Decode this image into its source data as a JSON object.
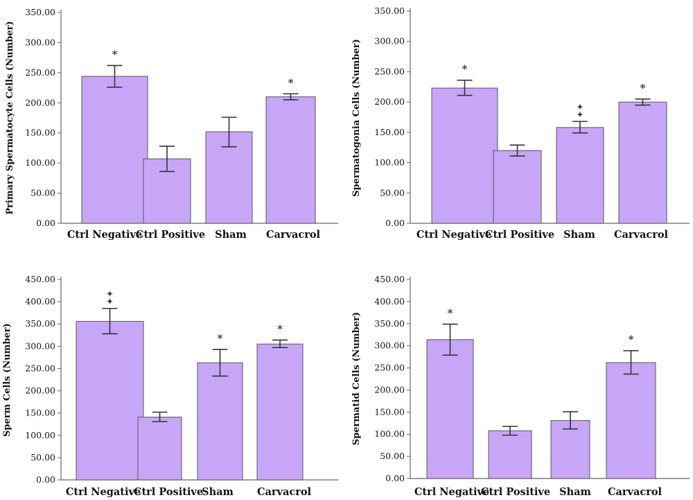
{
  "colors": {
    "bar_fill": "#c7a6f7",
    "bar_stroke": "#555555",
    "axis": "#666666",
    "error": "#333333"
  },
  "chart_data": [
    {
      "type": "bar",
      "title": "",
      "xlabel": "",
      "ylabel": "Primary Spermatocyte Cells (Number)",
      "ylim": [
        0,
        350
      ],
      "yticks": [
        0,
        50,
        100,
        150,
        200,
        250,
        300,
        350
      ],
      "ytick_labels": [
        "0.00",
        "50.00",
        "100.00",
        "150.00",
        "200.00",
        "250.00",
        "300.00",
        "350.00"
      ],
      "categories": [
        "Ctrl Negative",
        "Ctrl Positive",
        "Sham",
        "Carvacrol"
      ],
      "values": [
        244,
        107,
        152,
        210
      ],
      "error_low": [
        226,
        86,
        127,
        205
      ],
      "error_high": [
        262,
        128,
        176,
        215
      ],
      "markers": [
        "*",
        "",
        "",
        "*"
      ],
      "grid": false,
      "legend": "none"
    },
    {
      "type": "bar",
      "title": "",
      "xlabel": "",
      "ylabel": "Spermatogonia Cells (Number)",
      "ylim": [
        0,
        350
      ],
      "yticks": [
        0,
        50,
        100,
        150,
        200,
        250,
        300,
        350
      ],
      "ytick_labels": [
        "0.00",
        "50.00",
        "100.00",
        "150.00",
        "200.00",
        "250.00",
        "300.00",
        "350.00"
      ],
      "categories": [
        "Ctrl Negative",
        "Ctrl Positive",
        "Sham",
        "Carvacrol"
      ],
      "values": [
        223,
        120,
        158,
        200
      ],
      "error_low": [
        211,
        111,
        149,
        195
      ],
      "error_high": [
        236,
        129,
        168,
        205
      ],
      "markers": [
        "*",
        "",
        "✦✦",
        "*"
      ],
      "grid": false,
      "legend": "none"
    },
    {
      "type": "bar",
      "title": "",
      "xlabel": "",
      "ylabel": "Sperm Cells (Number)",
      "ylim": [
        0,
        450
      ],
      "yticks": [
        0,
        50,
        100,
        150,
        200,
        250,
        300,
        350,
        400,
        450
      ],
      "ytick_labels": [
        "0.00",
        "50.00",
        "100.00",
        "150.00",
        "200.00",
        "250.00",
        "300.00",
        "350.00",
        "400.00",
        "450.00"
      ],
      "categories": [
        "Ctrl Negative",
        "Ctrl Positive",
        "Sham",
        "Carvacrol"
      ],
      "values": [
        356,
        141,
        263,
        305
      ],
      "error_low": [
        328,
        131,
        233,
        297
      ],
      "error_high": [
        385,
        152,
        293,
        314
      ],
      "markers": [
        "✦✦",
        "",
        "*",
        "*"
      ],
      "grid": false,
      "legend": "none"
    },
    {
      "type": "bar",
      "title": "",
      "xlabel": "",
      "ylabel": "Spermatid Cells (Number)",
      "ylim": [
        0,
        450
      ],
      "yticks": [
        0,
        50,
        100,
        150,
        200,
        250,
        300,
        350,
        400,
        450
      ],
      "ytick_labels": [
        "0.00",
        "50.00",
        "100.00",
        "150.00",
        "200.00",
        "250.00",
        "300.00",
        "350.00",
        "400.00",
        "450.00"
      ],
      "categories": [
        "Ctrl Negative",
        "Ctrl Positive",
        "Sham",
        "Carvacrol"
      ],
      "values": [
        314,
        108,
        131,
        262
      ],
      "error_low": [
        279,
        98,
        112,
        236
      ],
      "error_high": [
        349,
        118,
        151,
        289
      ],
      "markers": [
        "*",
        "",
        "",
        "*"
      ],
      "grid": false,
      "legend": "none"
    }
  ]
}
